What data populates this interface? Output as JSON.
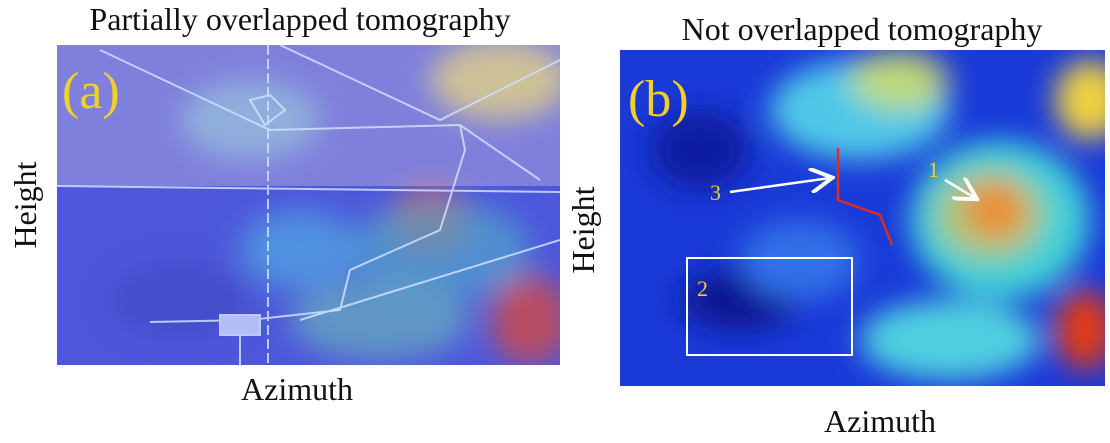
{
  "panels": [
    {
      "title": "Partially overlapped tomography",
      "label": "(a)",
      "y_axis": "Height",
      "x_axis": "Azimuth"
    },
    {
      "title": "Not overlapped tomography",
      "label": "(b)",
      "y_axis": "Height",
      "x_axis": "Azimuth",
      "annotations": [
        "1",
        "2",
        "3"
      ]
    }
  ]
}
